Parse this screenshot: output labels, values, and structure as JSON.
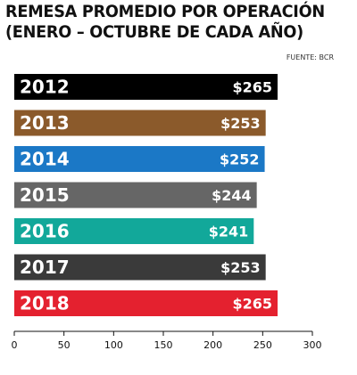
{
  "chart_data": {
    "type": "bar",
    "orientation": "horizontal",
    "title": "REMESA PROMEDIO POR OPERACIÓN",
    "subtitle": "(ENERO – OCTUBRE DE CADA AÑO)",
    "source": "FUENTE: BCR",
    "categories": [
      "2012",
      "2013",
      "2014",
      "2015",
      "2016",
      "2017",
      "2018"
    ],
    "values": [
      265,
      253,
      252,
      244,
      241,
      253,
      265
    ],
    "value_labels": [
      "$265",
      "$253",
      "$252",
      "$244",
      "$241",
      "$253",
      "$265"
    ],
    "colors": [
      "#000000",
      "#8b5a2b",
      "#1b78c6",
      "#666666",
      "#12a89a",
      "#3a3a3a",
      "#e4212f"
    ],
    "xlim": [
      0,
      300
    ],
    "xticks": [
      "0",
      "50",
      "100",
      "150",
      "200",
      "250",
      "300"
    ],
    "grid": false,
    "legend": "none"
  }
}
